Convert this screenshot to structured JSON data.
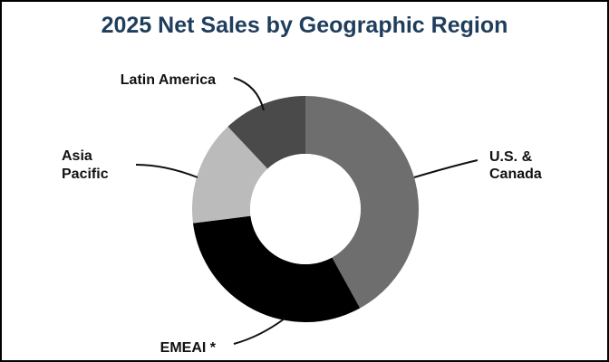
{
  "chart_data": {
    "type": "pie",
    "variant": "donut",
    "title": "2025 Net Sales by Geographic Region",
    "title_color": "#1f3d5c",
    "slices": [
      {
        "label": [
          "U.S. &",
          "Canada"
        ],
        "value": 42,
        "color": "#6e6e6e"
      },
      {
        "label": [
          "EMEAI *"
        ],
        "value": 31,
        "color": "#000000"
      },
      {
        "label": [
          "Asia",
          "Pacific"
        ],
        "value": 15,
        "color": "#bbbbbb"
      },
      {
        "label": [
          "Latin America"
        ],
        "value": 12,
        "color": "#4a4a4a"
      }
    ]
  }
}
